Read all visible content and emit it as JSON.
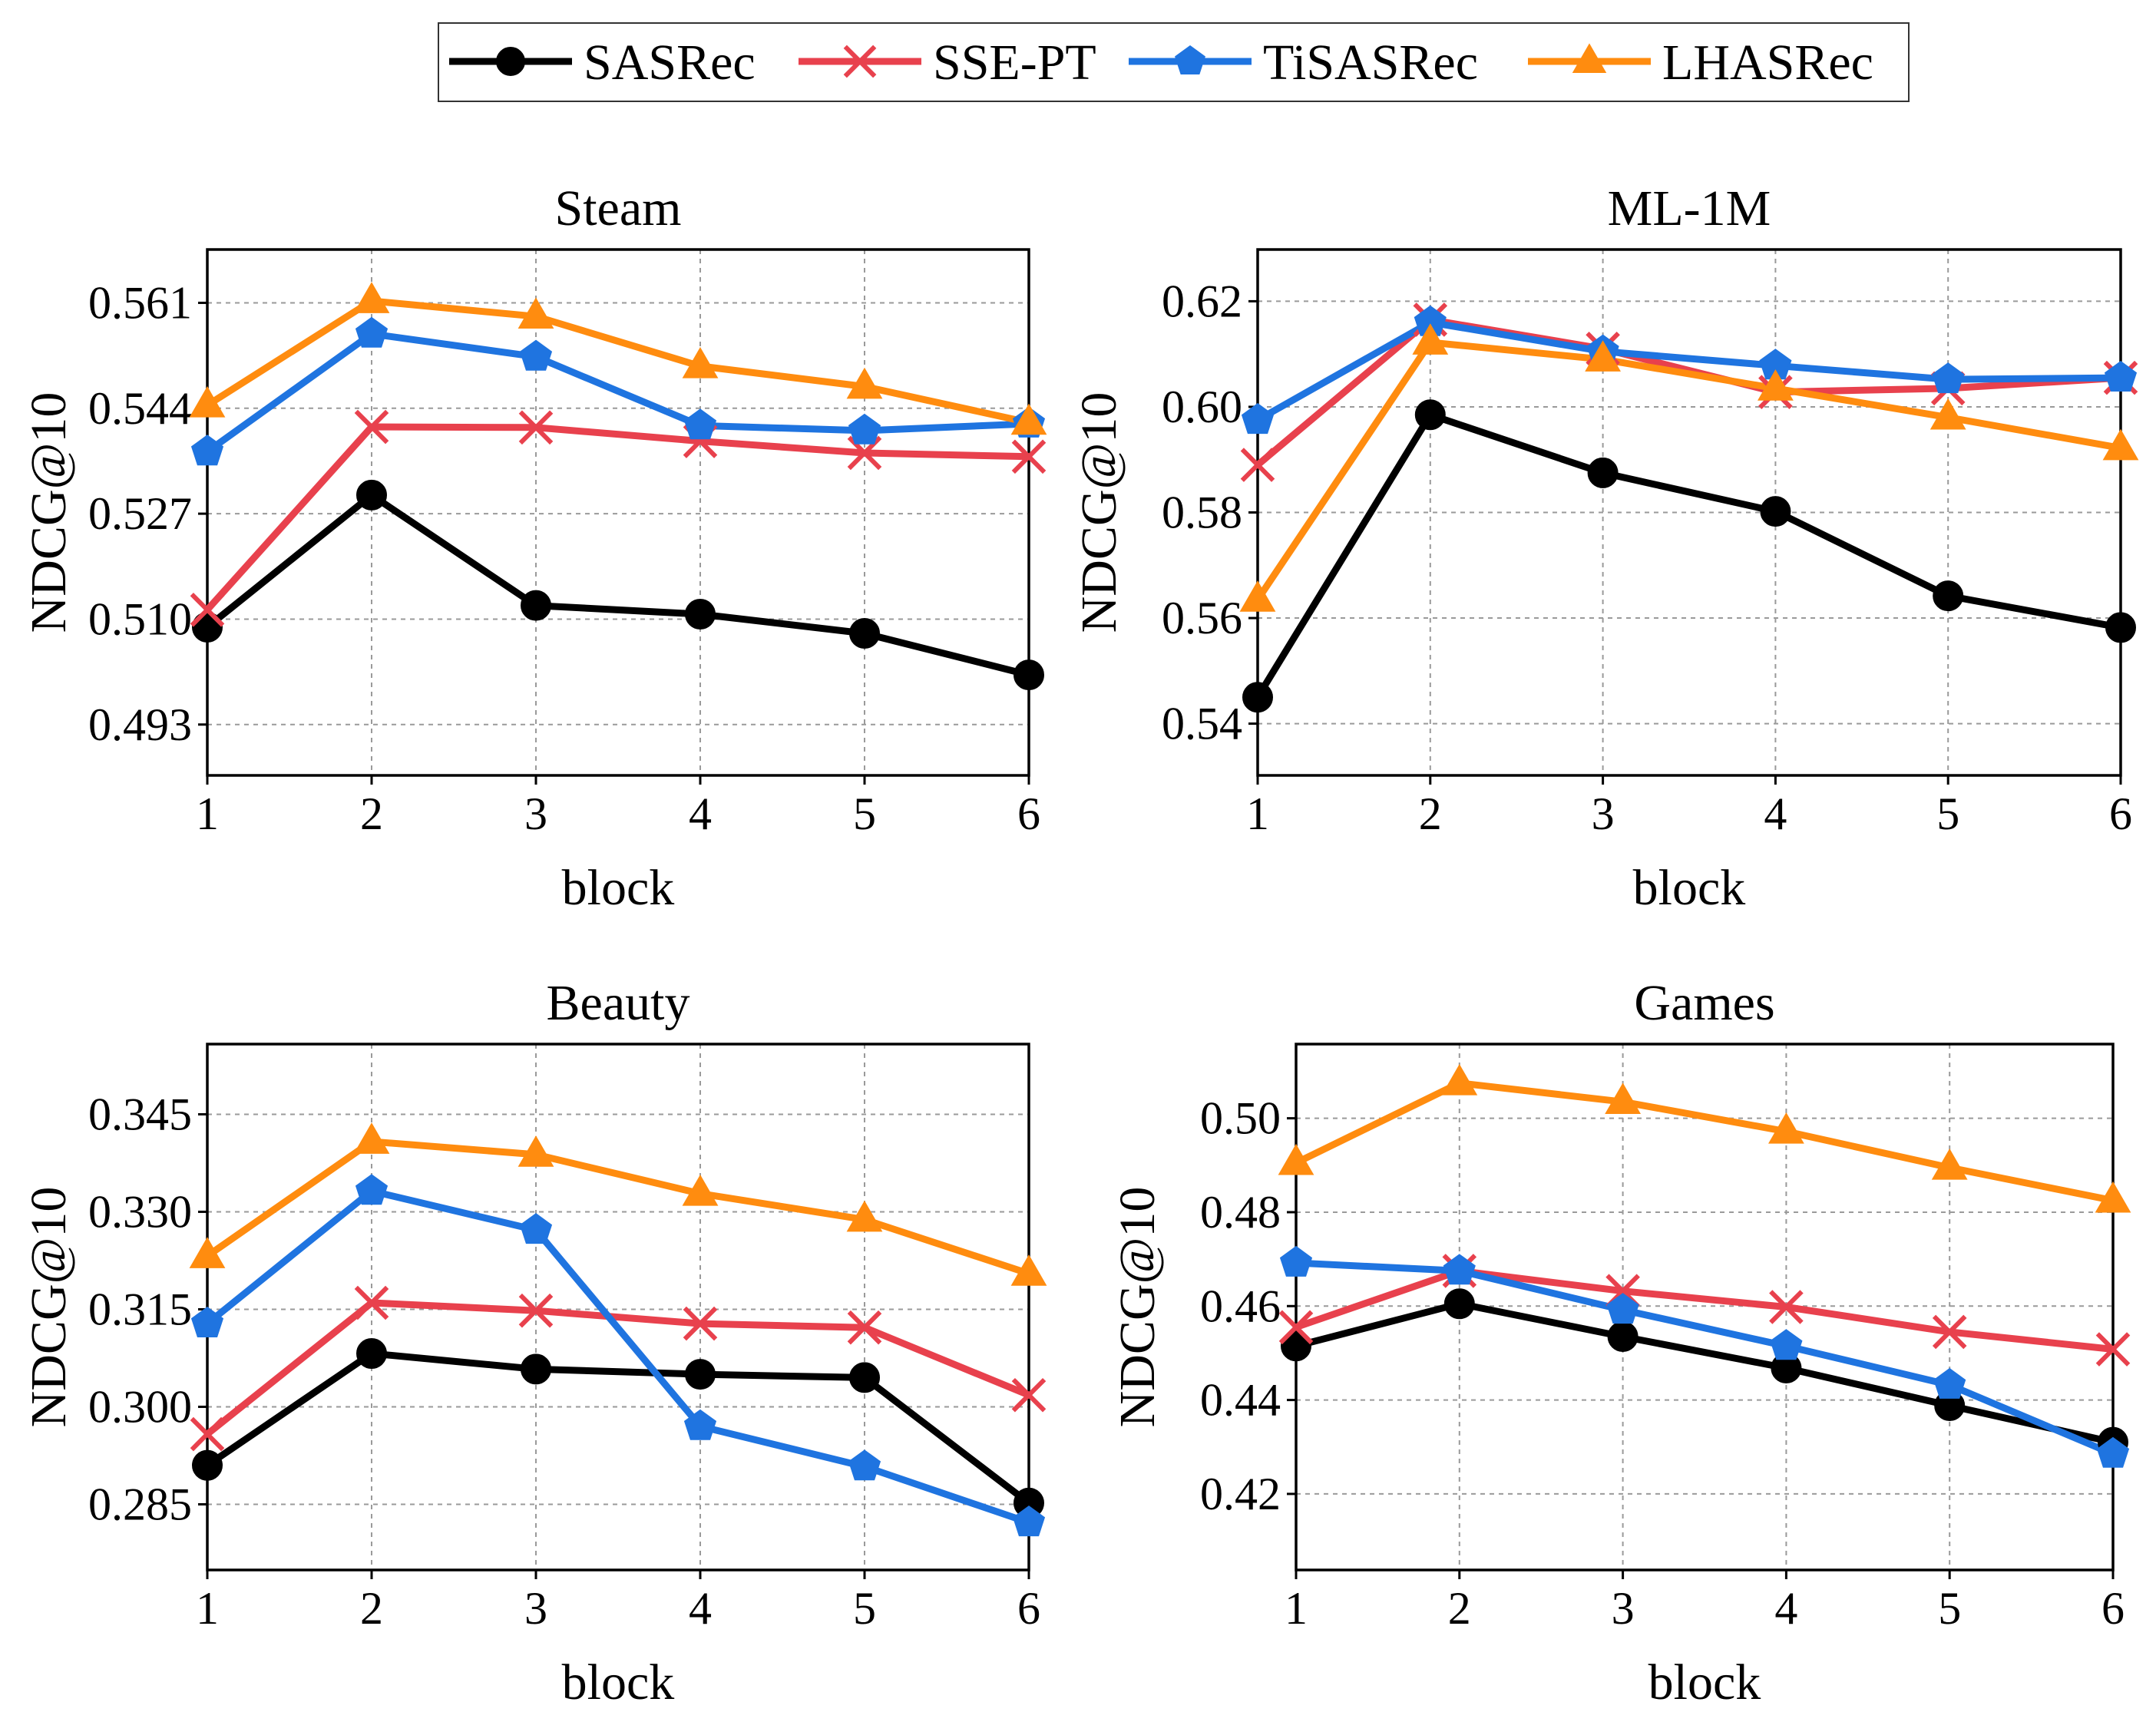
{
  "legend": {
    "series": [
      {
        "name": "SASRec",
        "color": "#000000",
        "marker": "circle"
      },
      {
        "name": "SSE-PT",
        "color": "#e8414d",
        "marker": "x"
      },
      {
        "name": "TiSASRec",
        "color": "#1f74e0",
        "marker": "pentagon"
      },
      {
        "name": "LHASRec",
        "color": "#ff8c0f",
        "marker": "triangle"
      }
    ]
  },
  "chart_data": [
    {
      "type": "line",
      "title": "Steam",
      "xlabel": "block",
      "ylabel": "NDCG@10",
      "x": [
        1,
        2,
        3,
        4,
        5,
        6
      ],
      "xticks": [
        "1",
        "2",
        "3",
        "4",
        "5",
        "6"
      ],
      "ylim": [
        0.4848,
        0.5696
      ],
      "yticks": [
        0.493,
        0.51,
        0.527,
        0.544,
        0.561
      ],
      "ytick_labels": [
        "0.493",
        "0.510",
        "0.527",
        "0.544",
        "0.561"
      ],
      "grid": true,
      "series": [
        {
          "name": "SASRec",
          "values": [
            0.5087,
            0.53,
            0.5122,
            0.5108,
            0.5077,
            0.501
          ]
        },
        {
          "name": "SSE-PT",
          "values": [
            0.5115,
            0.541,
            0.5409,
            0.5387,
            0.5368,
            0.5362
          ]
        },
        {
          "name": "TiSASRec",
          "values": [
            0.537,
            0.556,
            0.5523,
            0.5412,
            0.5404,
            0.5415
          ]
        },
        {
          "name": "LHASRec",
          "values": [
            0.5445,
            0.5613,
            0.5588,
            0.5508,
            0.5475,
            0.5417
          ]
        }
      ]
    },
    {
      "type": "line",
      "title": "ML-1M",
      "xlabel": "block",
      "ylabel": "NDCG@10",
      "x": [
        1,
        2,
        3,
        4,
        5,
        6
      ],
      "xticks": [
        "1",
        "2",
        "3",
        "4",
        "5",
        "6"
      ],
      "ylim": [
        0.5302,
        0.6298
      ],
      "yticks": [
        0.54,
        0.56,
        0.58,
        0.6,
        0.62
      ],
      "ytick_labels": [
        "0.54",
        "0.56",
        "0.58",
        "0.60",
        "0.62"
      ],
      "grid": true,
      "series": [
        {
          "name": "SASRec",
          "values": [
            0.545,
            0.5985,
            0.5875,
            0.5802,
            0.5642,
            0.5582
          ]
        },
        {
          "name": "SSE-PT",
          "values": [
            0.589,
            0.6165,
            0.611,
            0.6028,
            0.6035,
            0.6055
          ]
        },
        {
          "name": "TiSASRec",
          "values": [
            0.5975,
            0.616,
            0.6105,
            0.6078,
            0.6052,
            0.6055
          ]
        },
        {
          "name": "LHASRec",
          "values": [
            0.5635,
            0.6122,
            0.609,
            0.6035,
            0.598,
            0.5922
          ]
        }
      ]
    },
    {
      "type": "line",
      "title": "Beauty",
      "xlabel": "block",
      "ylabel": "NDCG@10",
      "x": [
        1,
        2,
        3,
        4,
        5,
        6
      ],
      "xticks": [
        "1",
        "2",
        "3",
        "4",
        "5",
        "6"
      ],
      "ylim": [
        0.2749,
        0.3558
      ],
      "yticks": [
        0.285,
        0.3,
        0.315,
        0.33,
        0.345
      ],
      "ytick_labels": [
        "0.285",
        "0.300",
        "0.315",
        "0.330",
        "0.345"
      ],
      "grid": true,
      "series": [
        {
          "name": "SASRec",
          "values": [
            0.291,
            0.3082,
            0.3058,
            0.305,
            0.3045,
            0.2852
          ]
        },
        {
          "name": "SSE-PT",
          "values": [
            0.2958,
            0.316,
            0.3148,
            0.3128,
            0.3122,
            0.3018
          ]
        },
        {
          "name": "TiSASRec",
          "values": [
            0.3128,
            0.3332,
            0.3272,
            0.297,
            0.2908,
            0.2822
          ]
        },
        {
          "name": "LHASRec",
          "values": [
            0.3232,
            0.3408,
            0.3388,
            0.3328,
            0.3288,
            0.3205
          ]
        }
      ]
    },
    {
      "type": "line",
      "title": "Games",
      "xlabel": "block",
      "ylabel": "NDCG@10",
      "x": [
        1,
        2,
        3,
        4,
        5,
        6
      ],
      "xticks": [
        "1",
        "2",
        "3",
        "4",
        "5",
        "6"
      ],
      "ylim": [
        0.4038,
        0.5158
      ],
      "yticks": [
        0.42,
        0.44,
        0.46,
        0.48,
        0.5
      ],
      "ytick_labels": [
        "0.42",
        "0.44",
        "0.46",
        "0.48",
        "0.50"
      ],
      "grid": true,
      "series": [
        {
          "name": "SASRec",
          "values": [
            0.4515,
            0.4605,
            0.4535,
            0.4468,
            0.4388,
            0.431
          ]
        },
        {
          "name": "SSE-PT",
          "values": [
            0.4555,
            0.4675,
            0.4632,
            0.4598,
            0.4545,
            0.4508
          ]
        },
        {
          "name": "TiSASRec",
          "values": [
            0.4692,
            0.4675,
            0.4592,
            0.4515,
            0.4432,
            0.4285
          ]
        },
        {
          "name": "LHASRec",
          "values": [
            0.4905,
            0.5075,
            0.5035,
            0.4972,
            0.4895,
            0.4825
          ]
        }
      ]
    }
  ]
}
